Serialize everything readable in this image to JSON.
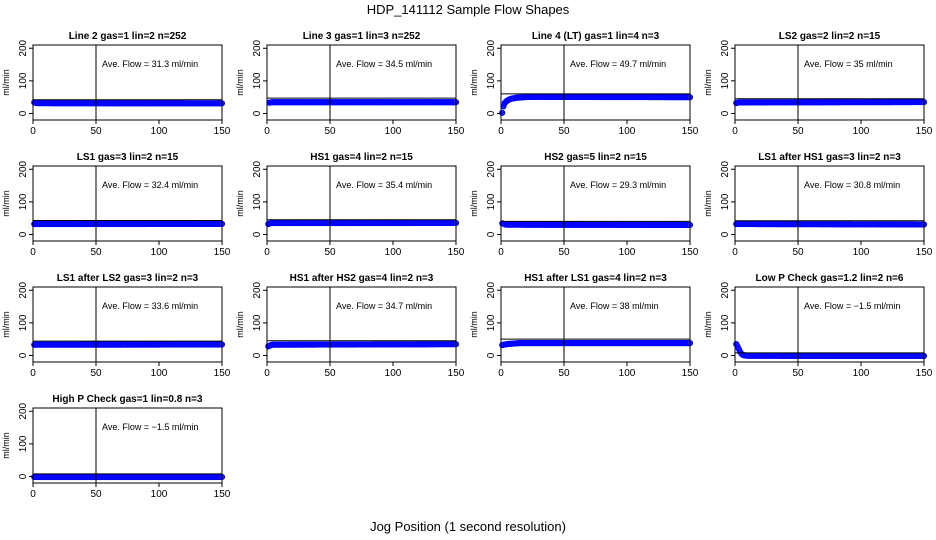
{
  "title": "HDP_141112  Sample Flow Shapes",
  "xlabel": "Jog Position (1 second resolution)",
  "colors": {
    "points": "#0000ff",
    "point_fill": "#1a1aff",
    "axes": "#000000"
  },
  "chart_data": [
    {
      "type": "scatter",
      "title": "Line 2 gas=1 lin=2 n=252",
      "ylabel": "ml/min",
      "annotation": "Ave. Flow =  31.3  ml/min",
      "vline": 50,
      "hline": 42,
      "xlim": [
        0,
        150
      ],
      "ylim": [
        -20,
        210
      ],
      "xticks": [
        0,
        50,
        100,
        150
      ],
      "yticks": [
        0,
        100,
        200
      ],
      "points": [
        [
          1,
          34
        ],
        [
          3,
          31.5
        ],
        [
          150,
          31.2
        ]
      ]
    },
    {
      "type": "scatter",
      "title": "Line 3 gas=1 lin=3 n=252",
      "ylabel": "ml/min",
      "annotation": "Ave. Flow =  34.5  ml/min",
      "vline": 50,
      "hline": 47,
      "xlim": [
        0,
        150
      ],
      "ylim": [
        -20,
        210
      ],
      "xticks": [
        0,
        50,
        100,
        150
      ],
      "yticks": [
        0,
        100,
        200
      ],
      "points": [
        [
          2,
          33
        ],
        [
          4,
          34.5
        ],
        [
          150,
          34.5
        ]
      ]
    },
    {
      "type": "scatter",
      "title": "Line 4 (LT) gas=1 lin=4 n=3",
      "ylabel": "ml/min",
      "annotation": "Ave. Flow =  49.7  ml/min",
      "vline": 50,
      "hline": 60,
      "xlim": [
        0,
        150
      ],
      "ylim": [
        -20,
        210
      ],
      "xticks": [
        0,
        50,
        100,
        150
      ],
      "yticks": [
        0,
        100,
        200
      ],
      "points": [
        [
          1,
          2
        ],
        [
          2,
          22
        ],
        [
          3,
          32
        ],
        [
          5,
          40
        ],
        [
          8,
          45
        ],
        [
          12,
          48
        ],
        [
          18,
          50
        ],
        [
          25,
          51
        ],
        [
          150,
          50
        ]
      ]
    },
    {
      "type": "scatter",
      "title": "LS2 gas=2 lin=2 n=15",
      "ylabel": "ml/min",
      "annotation": "Ave. Flow =  35  ml/min",
      "vline": 50,
      "hline": 45,
      "xlim": [
        0,
        150
      ],
      "ylim": [
        -20,
        210
      ],
      "xticks": [
        0,
        50,
        100,
        150
      ],
      "yticks": [
        0,
        100,
        200
      ],
      "points": [
        [
          1,
          32
        ],
        [
          3,
          34
        ],
        [
          150,
          35
        ]
      ]
    },
    {
      "type": "scatter",
      "title": "LS1 gas=3 lin=2 n=15",
      "ylabel": "ml/min",
      "annotation": "Ave. Flow =  32.4  ml/min",
      "vline": 50,
      "hline": 43,
      "xlim": [
        0,
        150
      ],
      "ylim": [
        -20,
        210
      ],
      "xticks": [
        0,
        50,
        100,
        150
      ],
      "yticks": [
        0,
        100,
        200
      ],
      "points": [
        [
          1,
          32
        ],
        [
          150,
          32.4
        ]
      ]
    },
    {
      "type": "scatter",
      "title": "HS1 gas=4 lin=2 n=15",
      "ylabel": "ml/min",
      "annotation": "Ave. Flow =  35.4  ml/min",
      "vline": 50,
      "hline": 45,
      "xlim": [
        0,
        150
      ],
      "ylim": [
        -20,
        210
      ],
      "xticks": [
        0,
        50,
        100,
        150
      ],
      "yticks": [
        0,
        100,
        200
      ],
      "points": [
        [
          1,
          32
        ],
        [
          3,
          35
        ],
        [
          150,
          35.4
        ]
      ]
    },
    {
      "type": "scatter",
      "title": "HS2 gas=5 lin=2 n=15",
      "ylabel": "ml/min",
      "annotation": "Ave. Flow =  29.3  ml/min",
      "vline": 50,
      "hline": 40,
      "xlim": [
        0,
        150
      ],
      "ylim": [
        -20,
        210
      ],
      "xticks": [
        0,
        50,
        100,
        150
      ],
      "yticks": [
        0,
        100,
        200
      ],
      "points": [
        [
          1,
          34
        ],
        [
          4,
          30
        ],
        [
          150,
          29.3
        ]
      ]
    },
    {
      "type": "scatter",
      "title": "LS1 after HS1 gas=3 lin=2 n=3",
      "ylabel": "ml/min",
      "annotation": "Ave. Flow =  30.8  ml/min",
      "vline": 50,
      "hline": 42,
      "xlim": [
        0,
        150
      ],
      "ylim": [
        -20,
        210
      ],
      "xticks": [
        0,
        50,
        100,
        150
      ],
      "yticks": [
        0,
        100,
        200
      ],
      "points": [
        [
          1,
          32
        ],
        [
          150,
          30.8
        ]
      ]
    },
    {
      "type": "scatter",
      "title": "LS1 after LS2 gas=3 lin=2 n=3",
      "ylabel": "ml/min",
      "annotation": "Ave. Flow =  33.6  ml/min",
      "vline": 50,
      "hline": 44,
      "xlim": [
        0,
        150
      ],
      "ylim": [
        -20,
        210
      ],
      "xticks": [
        0,
        50,
        100,
        150
      ],
      "yticks": [
        0,
        100,
        200
      ],
      "points": [
        [
          1,
          33
        ],
        [
          150,
          33.6
        ]
      ]
    },
    {
      "type": "scatter",
      "title": "HS1 after HS2 gas=4 lin=2 n=3",
      "ylabel": "ml/min",
      "annotation": "Ave. Flow =  34.7  ml/min",
      "vline": 50,
      "hline": 45,
      "xlim": [
        0,
        150
      ],
      "ylim": [
        -20,
        210
      ],
      "xticks": [
        0,
        50,
        100,
        150
      ],
      "yticks": [
        0,
        100,
        200
      ],
      "points": [
        [
          1,
          28
        ],
        [
          4,
          33
        ],
        [
          150,
          34.7
        ]
      ]
    },
    {
      "type": "scatter",
      "title": "HS1 after LS1 gas=4 lin=2 n=3",
      "ylabel": "ml/min",
      "annotation": "Ave. Flow =  38  ml/min",
      "vline": 50,
      "hline": 50,
      "xlim": [
        0,
        150
      ],
      "ylim": [
        -20,
        210
      ],
      "xticks": [
        0,
        50,
        100,
        150
      ],
      "yticks": [
        0,
        100,
        200
      ],
      "points": [
        [
          1,
          32
        ],
        [
          5,
          35
        ],
        [
          15,
          38
        ],
        [
          150,
          38
        ]
      ]
    },
    {
      "type": "scatter",
      "title": "Low P Check gas=1.2 lin=2 n=6",
      "ylabel": "ml/min",
      "annotation": "Ave. Flow =  −1.5  ml/min",
      "vline": 50,
      "hline": 8,
      "xlim": [
        0,
        150
      ],
      "ylim": [
        -20,
        210
      ],
      "xticks": [
        0,
        50,
        100,
        150
      ],
      "yticks": [
        0,
        100,
        200
      ],
      "points": [
        [
          1,
          35
        ],
        [
          2,
          28
        ],
        [
          3,
          20
        ],
        [
          4,
          12
        ],
        [
          5,
          6
        ],
        [
          6,
          2
        ],
        [
          8,
          0
        ],
        [
          10,
          -1
        ],
        [
          150,
          -1.5
        ]
      ]
    },
    {
      "type": "scatter",
      "title": "High P Check gas=1 lin=0.8 n=3",
      "ylabel": "ml/min",
      "annotation": "Ave. Flow =  −1.5  ml/min",
      "vline": 50,
      "hline": 8,
      "xlim": [
        0,
        150
      ],
      "ylim": [
        -20,
        210
      ],
      "xticks": [
        0,
        50,
        100,
        150
      ],
      "yticks": [
        0,
        100,
        200
      ],
      "points": [
        [
          1,
          -1.5
        ],
        [
          150,
          -1.5
        ]
      ]
    }
  ]
}
